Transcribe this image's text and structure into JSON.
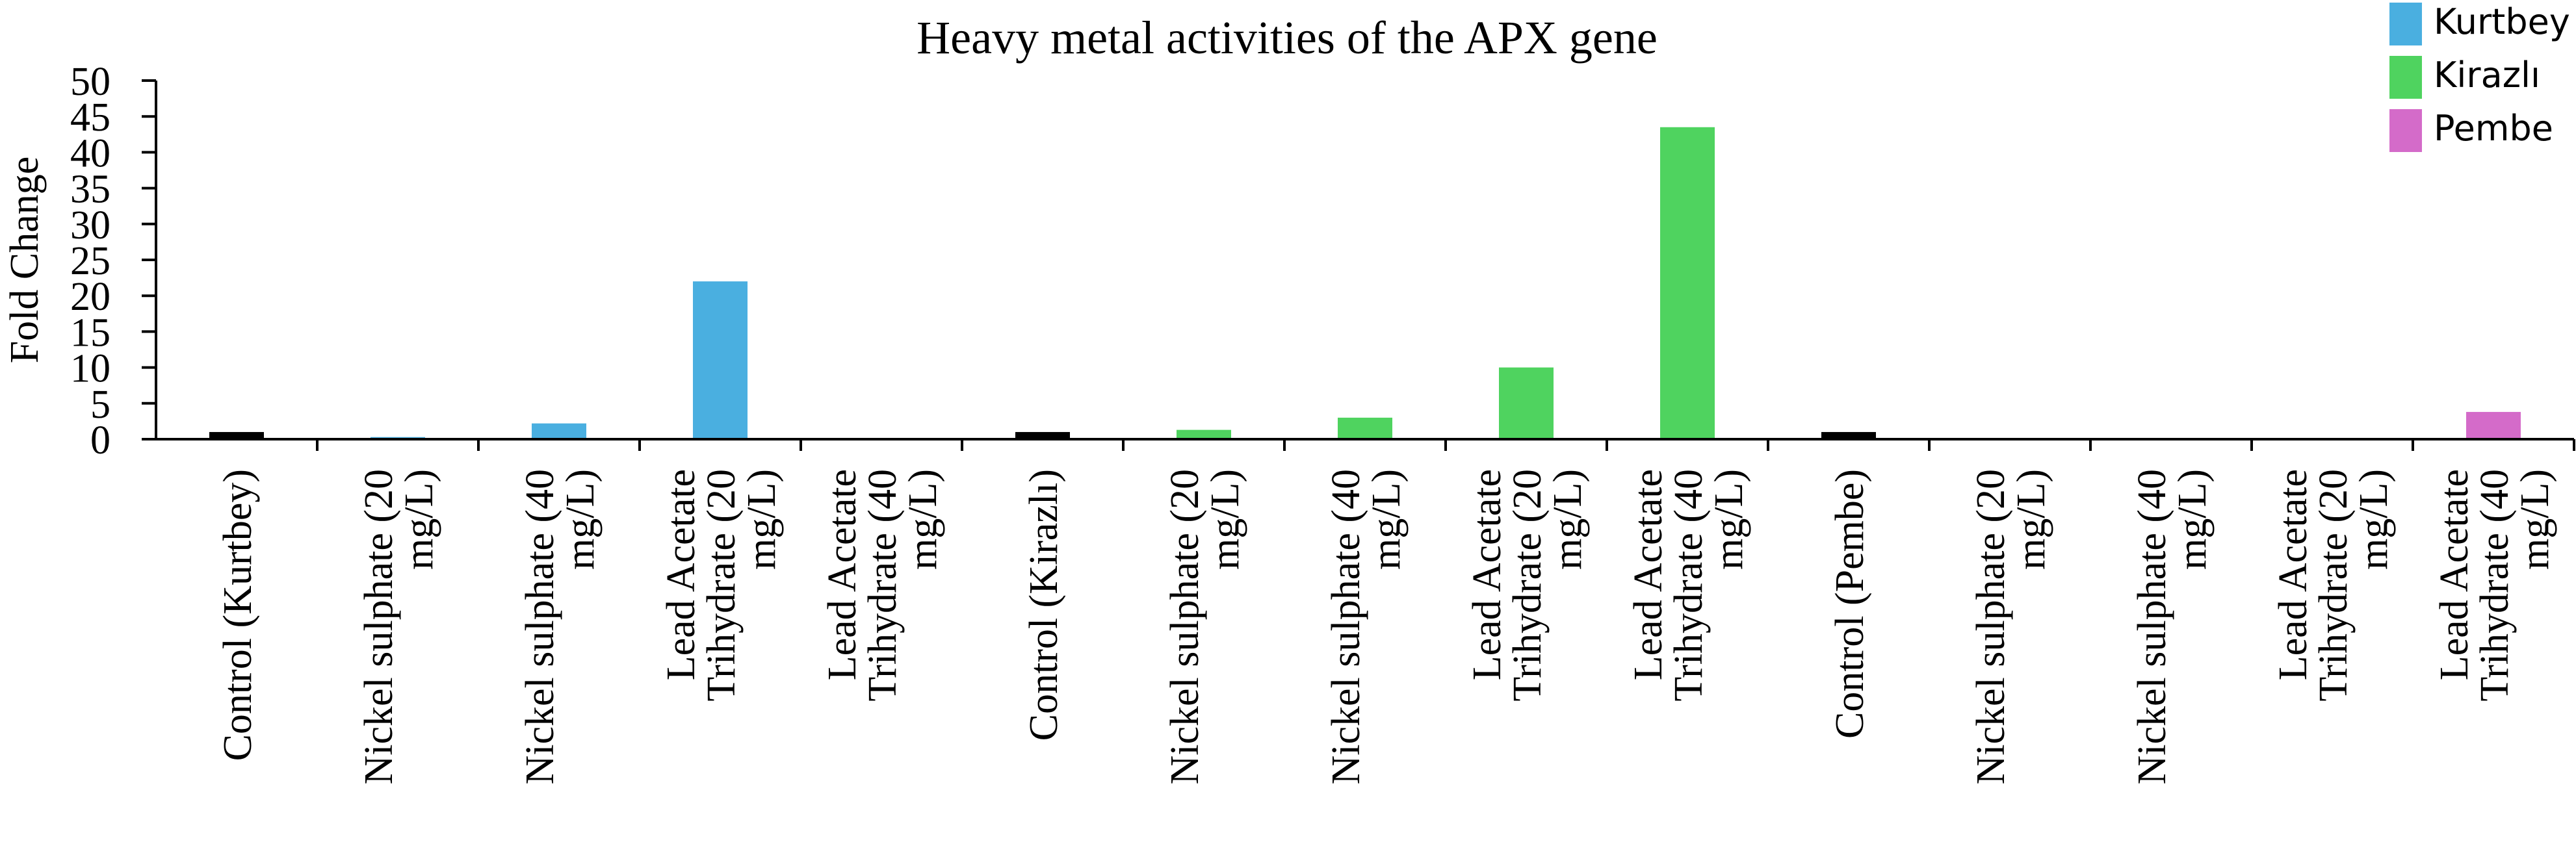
{
  "chart_data": {
    "type": "bar",
    "title": "Heavy metal activities of the APX gene",
    "ylabel": "Fold Change",
    "xlabel": "",
    "ylim": [
      0,
      50
    ],
    "yticks": [
      0,
      5,
      10,
      15,
      20,
      25,
      30,
      35,
      40,
      45,
      50
    ],
    "grid": false,
    "legend_position": "top-right",
    "categories": [
      [
        "Control (Kurtbey)"
      ],
      [
        "Nickel sulphate (20",
        "mg/L)"
      ],
      [
        "Nickel sulphate (40",
        "mg/L)"
      ],
      [
        "Lead Acetate",
        "Trihydrate (20",
        "mg/L)"
      ],
      [
        "Lead Acetate",
        "Trihydrate (40",
        "mg/L)"
      ],
      [
        "Control (Kirazlı)"
      ],
      [
        "Nickel sulphate (20",
        "mg/L)"
      ],
      [
        "Nickel sulphate (40",
        "mg/L)"
      ],
      [
        "Lead Acetate",
        "Trihydrate (20",
        "mg/L)"
      ],
      [
        "Lead Acetate",
        "Trihydrate (40",
        "mg/L)"
      ],
      [
        "Control (Pembe)"
      ],
      [
        "Nickel sulphate (20",
        "mg/L)"
      ],
      [
        "Nickel sulphate (40",
        "mg/L)"
      ],
      [
        "Lead Acetate",
        "Trihydrate (20",
        "mg/L)"
      ],
      [
        "Lead Acetate",
        "Trihydrate (40",
        "mg/L)"
      ]
    ],
    "values": [
      1,
      0.3,
      2.2,
      22,
      0.05,
      1,
      1.3,
      3,
      10,
      43.5,
      1,
      0.05,
      0.05,
      0.05,
      3.8
    ],
    "bar_series": [
      -1,
      0,
      0,
      0,
      0,
      -1,
      1,
      1,
      1,
      1,
      -1,
      2,
      2,
      2,
      2
    ],
    "control_color": "#000000",
    "series": [
      {
        "name": "Kurtbey",
        "color": "#4aafe0"
      },
      {
        "name": "Kirazlı",
        "color": "#4fd35f"
      },
      {
        "name": "Pembe",
        "color": "#d46bc9"
      }
    ]
  }
}
